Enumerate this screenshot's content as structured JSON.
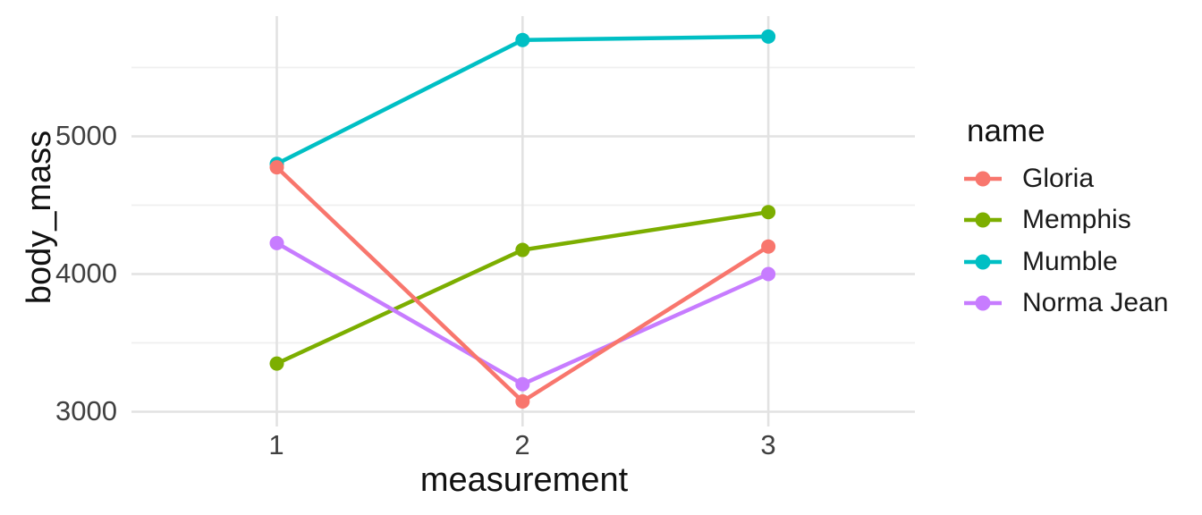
{
  "figure": {
    "background": "#FFFFFF",
    "grid_major_color": "#E2E2E2",
    "grid_minor_color": "#EFEFEF",
    "tick_text_color": "#404040",
    "title_text_color": "#111111"
  },
  "chart_data": {
    "type": "line",
    "title": "",
    "xlabel": "measurement",
    "ylabel": "body_mass",
    "x": [
      1,
      2,
      3
    ],
    "x_tick_labels": [
      "1",
      "2",
      "3"
    ],
    "y_ticks": [
      3000,
      4000,
      5000
    ],
    "y_minor_gridlines": [
      3500,
      4500,
      5500
    ],
    "xlim": [
      0.4,
      3.6
    ],
    "ylim": [
      2900,
      5870
    ],
    "grid": true,
    "marker": "circle",
    "legend_title": "name",
    "legend_position": "right",
    "series": [
      {
        "name": "Gloria",
        "color": "#F8766D",
        "values": [
          4775,
          3075,
          4200
        ]
      },
      {
        "name": "Memphis",
        "color": "#7CAE00",
        "values": [
          3350,
          4175,
          4450
        ]
      },
      {
        "name": "Mumble",
        "color": "#00BFC4",
        "values": [
          4800,
          5700,
          5725
        ]
      },
      {
        "name": "Norma Jean",
        "color": "#C77CFF",
        "values": [
          4225,
          3200,
          4000
        ]
      }
    ]
  }
}
